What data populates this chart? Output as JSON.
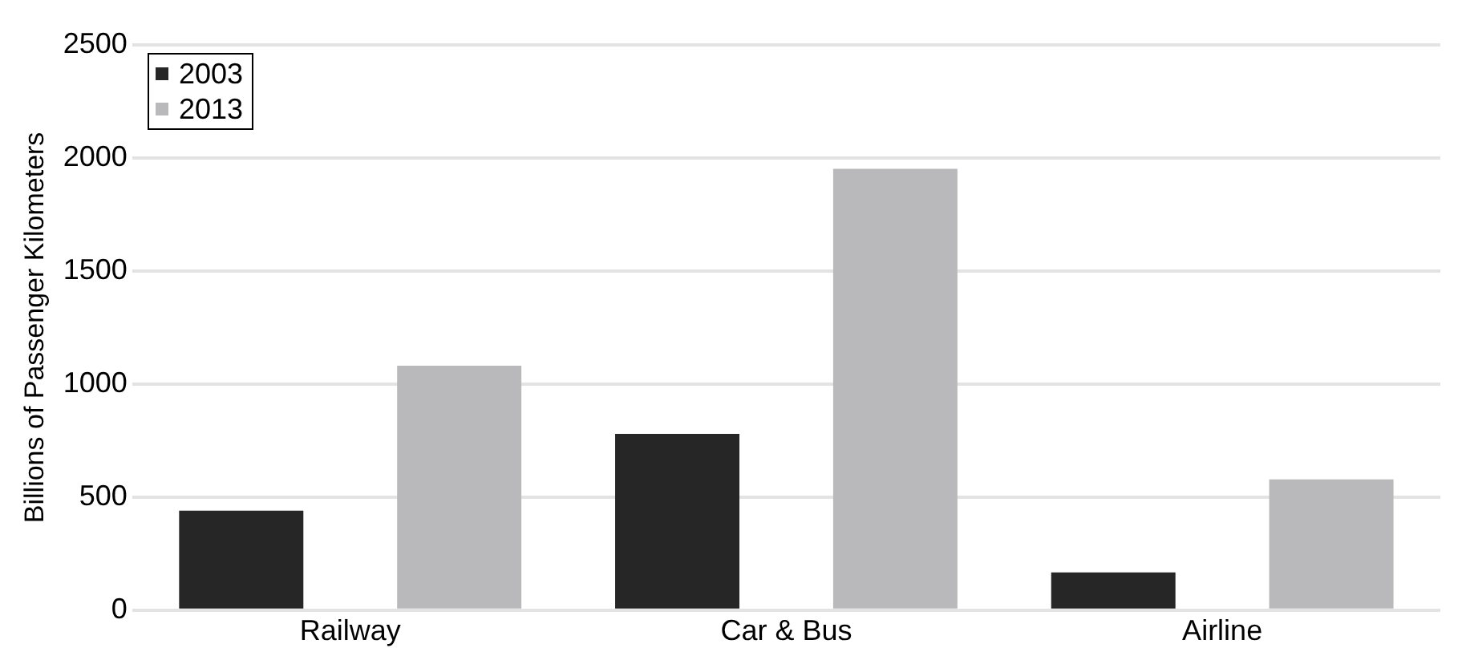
{
  "chart_data": {
    "type": "bar",
    "ylabel": "Billions of Passenger Kilometers",
    "categories": [
      "Railway",
      "Car & Bus",
      "Airline"
    ],
    "series": [
      {
        "name": "2003",
        "color": "#262626",
        "values": [
          440,
          780,
          167
        ]
      },
      {
        "name": "2013",
        "color": "#b9b9bb",
        "values": [
          1081,
          1952,
          578
        ]
      }
    ],
    "ylim": [
      0,
      2500
    ],
    "yticks": [
      0,
      500,
      1000,
      1500,
      2000,
      2500
    ],
    "grid": "y",
    "legend": "top left"
  }
}
